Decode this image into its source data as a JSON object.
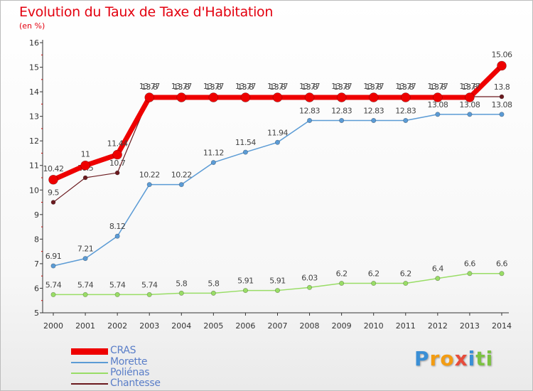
{
  "chart_data": {
    "type": "line",
    "title": "Evolution du Taux de Taxe d'Habitation",
    "subtitle": "(en %)",
    "x": [
      "2000",
      "2001",
      "2002",
      "2003",
      "2004",
      "2005",
      "2006",
      "2007",
      "2008",
      "2009",
      "2010",
      "2011",
      "2012",
      "2013",
      "2014"
    ],
    "ylim": [
      5,
      16
    ],
    "yticks": [
      "5",
      "6",
      "7",
      "8",
      "9",
      "10",
      "11",
      "12",
      "13",
      "14",
      "15",
      "16"
    ],
    "grid": false,
    "legend_position": "bottom-left",
    "series": [
      {
        "name": "Chantesse",
        "color": "#6b1a1f",
        "values": [
          9.5,
          10.5,
          10.7,
          13.8,
          13.8,
          13.8,
          13.8,
          13.8,
          13.8,
          13.8,
          13.8,
          13.8,
          13.8,
          13.8,
          13.8
        ],
        "labels": [
          "9.5",
          "10.5",
          "10.7",
          "13.8",
          "13.8",
          "13.8",
          "13.8",
          "13.8",
          "13.8",
          "13.8",
          "13.8",
          "13.8",
          "13.8",
          "13.8",
          "13.8"
        ]
      },
      {
        "name": "Poliénas",
        "color": "#99dd66",
        "values": [
          5.74,
          5.74,
          5.74,
          5.74,
          5.8,
          5.8,
          5.91,
          5.91,
          6.03,
          6.2,
          6.2,
          6.2,
          6.4,
          6.6,
          6.6
        ],
        "labels": [
          "5.74",
          "5.74",
          "5.74",
          "5.74",
          "5.8",
          "5.8",
          "5.91",
          "5.91",
          "6.03",
          "6.2",
          "6.2",
          "6.2",
          "6.4",
          "6.6",
          "6.6"
        ]
      },
      {
        "name": "Morette",
        "color": "#5b9bd5",
        "values": [
          6.91,
          7.21,
          8.12,
          10.22,
          10.22,
          11.12,
          11.54,
          11.94,
          12.83,
          12.83,
          12.83,
          12.83,
          13.08,
          13.08,
          13.08
        ],
        "labels": [
          "6.91",
          "7.21",
          "8.12",
          "10.22",
          "10.22",
          "11.12",
          "11.54",
          "11.94",
          "12.83",
          "12.83",
          "12.83",
          "12.83",
          "13.08",
          "13.08",
          "13.08"
        ]
      },
      {
        "name": "CRAS",
        "color": "#ee0000",
        "values": [
          10.42,
          11,
          11.44,
          13.77,
          13.77,
          13.77,
          13.77,
          13.77,
          13.77,
          13.77,
          13.77,
          13.77,
          13.77,
          13.77,
          15.06
        ],
        "labels": [
          "10.42",
          "11",
          "11.44",
          "13.77",
          "13.77",
          "13.77",
          "13.77",
          "13.77",
          "13.77",
          "13.77",
          "13.77",
          "13.77",
          "13.77",
          "13.77",
          "15.06"
        ]
      }
    ]
  },
  "legend": [
    {
      "name": "CRAS",
      "color": "#ee0000",
      "label_color": "#5a7ec8"
    },
    {
      "name": "Morette",
      "color": "#5b9bd5",
      "label_color": "#5a7ec8"
    },
    {
      "name": "Poliénas",
      "color": "#99dd66",
      "label_color": "#5a7ec8"
    },
    {
      "name": "Chantesse",
      "color": "#6b1a1f",
      "label_color": "#5a7ec8"
    }
  ],
  "logo": {
    "letters": [
      "P",
      "r",
      "o",
      "x",
      "i",
      "t",
      "i"
    ],
    "colors": [
      "#3a8fd6",
      "#f39c12",
      "#f39c12",
      "#e74c3c",
      "#3a8fd6",
      "#7cc242",
      "#7cc242"
    ]
  }
}
